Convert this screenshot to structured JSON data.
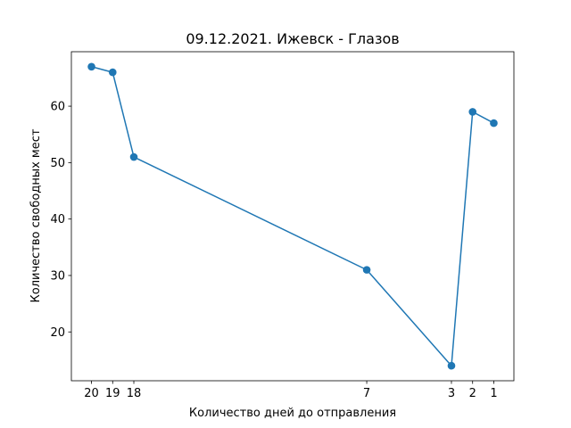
{
  "chart_data": {
    "type": "line",
    "title": "09.12.2021. Ижевск - Глазов",
    "xlabel": "Количество дней до отправления",
    "ylabel": "Количество свободных мест",
    "x_inverted": true,
    "x": [
      20,
      19,
      18,
      7,
      3,
      2,
      1
    ],
    "y": [
      67,
      66,
      51,
      31,
      14,
      59,
      57
    ],
    "xticks": [
      20,
      19,
      18,
      7,
      3,
      2,
      1
    ],
    "yticks": [
      20,
      30,
      40,
      50,
      60
    ],
    "xlim": [
      20.95,
      0.05
    ],
    "ylim": [
      11.35,
      69.65
    ],
    "marker": "circle",
    "color": "#1f77b4",
    "grid": false
  }
}
